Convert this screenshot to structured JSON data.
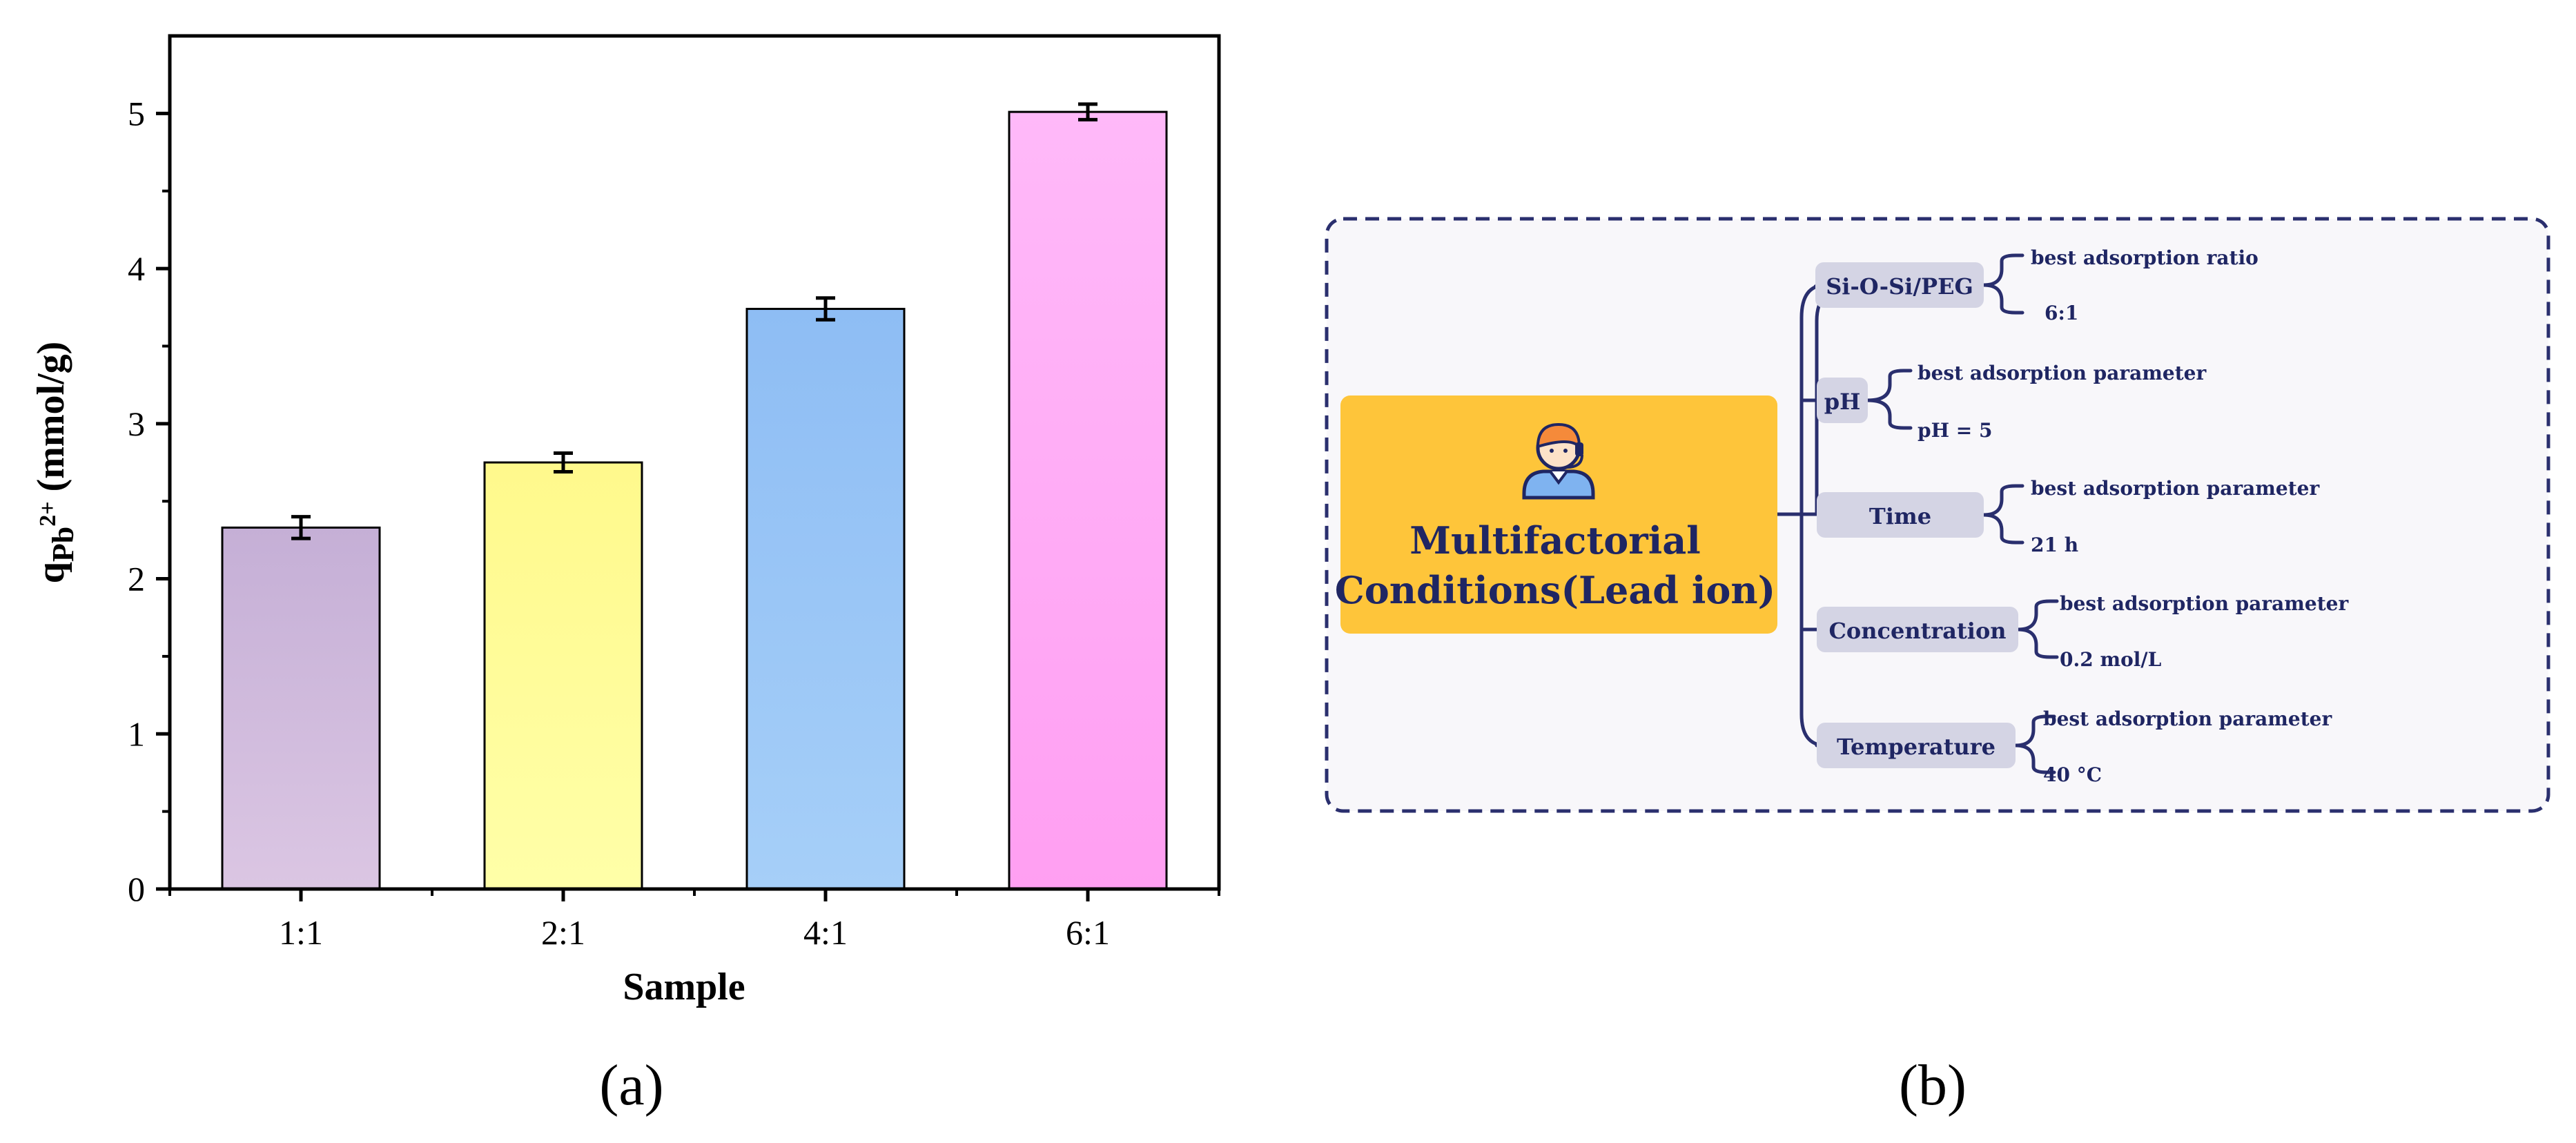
{
  "chart_data": [
    {
      "type": "bar",
      "categories": [
        "1:1",
        "2:1",
        "4:1",
        "6:1"
      ],
      "values": [
        2.33,
        2.75,
        3.74,
        5.01
      ],
      "errors": [
        0.07,
        0.06,
        0.07,
        0.05
      ],
      "xlabel": "Sample",
      "ylabel_main": "q",
      "ylabel_sub": "Pb",
      "ylabel_sup": "2+",
      "ylabel_unit": " (mmol/g)",
      "ylim": [
        0,
        5.5
      ],
      "yticks": [
        0,
        1,
        2,
        3,
        4,
        5
      ],
      "grid": false,
      "bar_colors": [
        {
          "top": "#c5afd6",
          "bottom": "#dbc6e3"
        },
        {
          "top": "#fff98c",
          "bottom": "#ffffa8"
        },
        {
          "top": "#8ebdf4",
          "bottom": "#a6cff8"
        },
        {
          "top": "#ffb9f9",
          "bottom": "#ff9ff2"
        }
      ]
    }
  ],
  "panel_a": "(a)",
  "panel_b": "(b)",
  "mindmap": {
    "central": {
      "line1": "Multifactorial",
      "line2": "Conditions(Lead ion)"
    },
    "central_icon": "person-headset-icon",
    "colors": {
      "central_bg": "#fec53a",
      "node_bg": "#d4d4e4",
      "line": "#2a2f6e",
      "text": "#1f2663",
      "panel_bg": "#f8f7fa"
    },
    "branches": [
      {
        "label": "Si-O-Si/PEG",
        "top": "best adsorption ratio",
        "bottom": "6:1"
      },
      {
        "label": "pH",
        "top": "best adsorption parameter",
        "bottom": "pH = 5"
      },
      {
        "label": "Time",
        "top": "best adsorption parameter",
        "bottom": "21 h"
      },
      {
        "label": "Concentration",
        "top": "best adsorption parameter",
        "bottom": "0.2 mol/L"
      },
      {
        "label": "Temperature",
        "top": "best adsorption parameter",
        "bottom": "40 °C"
      }
    ]
  }
}
